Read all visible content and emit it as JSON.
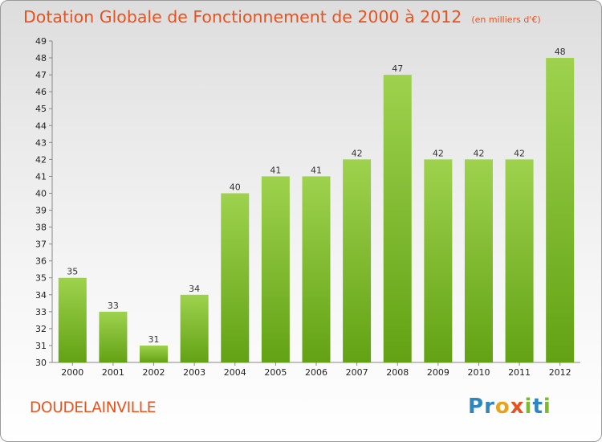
{
  "chart_data": {
    "type": "bar",
    "title": "Dotation Globale de Fonctionnement de 2000 à 2012",
    "subtitle": "(en milliers d'€)",
    "categories": [
      "2000",
      "2001",
      "2002",
      "2003",
      "2004",
      "2005",
      "2006",
      "2007",
      "2008",
      "2009",
      "2010",
      "2011",
      "2012"
    ],
    "values": [
      35,
      33,
      31,
      34,
      40,
      41,
      41,
      42,
      47,
      42,
      42,
      42,
      48
    ],
    "ylim": [
      30,
      49
    ],
    "yticks": [
      30,
      31,
      32,
      33,
      34,
      35,
      36,
      37,
      38,
      39,
      40,
      41,
      42,
      43,
      44,
      45,
      46,
      47,
      48,
      49
    ],
    "grid": false,
    "bar_color": "#7cbc2a"
  },
  "commune": "DOUDELAINVILLE",
  "brand": {
    "letters": [
      {
        "char": "P",
        "color": "#2e86c1"
      },
      {
        "char": "r",
        "color": "#2e86c1"
      },
      {
        "char": "o",
        "color": "#e8a21e"
      },
      {
        "char": "x",
        "color": "#e8521e"
      },
      {
        "char": "i",
        "color": "#7cbc2a"
      },
      {
        "char": "t",
        "color": "#2e86c1"
      },
      {
        "char": "i",
        "color": "#7cbc2a"
      }
    ]
  }
}
